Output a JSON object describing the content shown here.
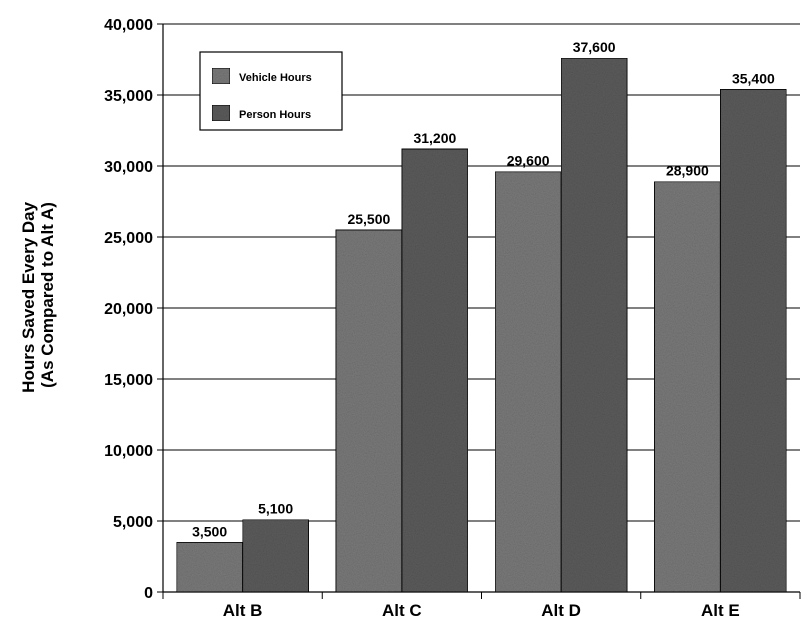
{
  "chart_data": {
    "type": "bar",
    "title": "",
    "xlabel": "",
    "ylabel": [
      "Hours Saved Every Day",
      "(As Compared to Alt A)"
    ],
    "categories": [
      "Alt B",
      "Alt C",
      "Alt D",
      "Alt E"
    ],
    "ylim": [
      0,
      40000
    ],
    "yticks": [
      0,
      5000,
      10000,
      15000,
      20000,
      25000,
      30000,
      35000,
      40000
    ],
    "ytick_labels": [
      "0",
      "5,000",
      "10,000",
      "15,000",
      "20,000",
      "25,000",
      "30,000",
      "35,000",
      "40,000"
    ],
    "grid": true,
    "legend_placement": "top-left",
    "series": [
      {
        "name": "Vehicle Hours",
        "values": [
          3500,
          25500,
          29600,
          28900
        ],
        "value_labels": [
          "3,500",
          "25,500",
          "29,600",
          "28,900"
        ],
        "color": "#7a7a7a"
      },
      {
        "name": "Person Hours",
        "values": [
          5100,
          31200,
          37600,
          35400
        ],
        "value_labels": [
          "5,100",
          "31,200",
          "37,600",
          "35,400"
        ],
        "color": "#5c5c5c"
      }
    ]
  }
}
